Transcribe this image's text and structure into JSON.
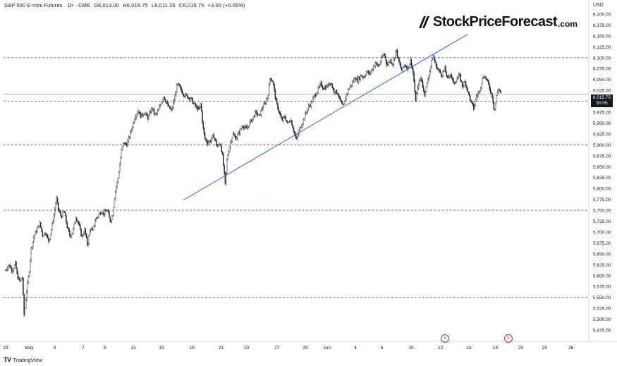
{
  "header": {
    "symbol": "S&P 500 E-mini Futures · 1h · CME",
    "open": "O6,013.00",
    "high": "H6,018.75",
    "low": "L6,011.25",
    "close": "C6,015.75",
    "change": "+3.00 (+0.05%)"
  },
  "brand": {
    "name": "StockPriceForecast",
    "tld": ".com"
  },
  "footer": {
    "logo": "TV",
    "label": "TradingView"
  },
  "price_tag": {
    "price": "6,015.75",
    "timer": "30:05"
  },
  "colors": {
    "candle": "#131722",
    "trendline": "#2962ff",
    "level_line": "#2962ff",
    "event": "#9c27b0"
  },
  "chart_data": {
    "type": "candlestick",
    "unit": "USD",
    "ylim": [
      5475,
      6212
    ],
    "y_ticks": [
      "6,200.00",
      "6,175.00",
      "6,150.00",
      "6,125.00",
      "6,100.00",
      "6,075.00",
      "6,050.00",
      "6,025.00",
      "6,000.00",
      "5,975.00",
      "5,950.00",
      "5,925.00",
      "5,900.00",
      "5,875.00",
      "5,850.00",
      "5,825.00",
      "5,800.00",
      "5,775.00",
      "5,750.00",
      "5,725.00",
      "5,700.00",
      "5,675.00",
      "5,650.00",
      "5,625.00",
      "5,600.00",
      "5,575.00",
      "5,550.00",
      "5,525.00",
      "5,500.00",
      "5,475.00"
    ],
    "x_ticks": [
      "29",
      "May",
      "4",
      "7",
      "9",
      "13",
      "15",
      "18",
      "21",
      "23",
      "27",
      "29",
      "Jun",
      "4",
      "6",
      "10",
      "12",
      "15",
      "18",
      "20",
      "24",
      "26"
    ],
    "last_price": 6015.75,
    "horizontal_levels": [
      6100,
      6000,
      5900,
      5750,
      5550
    ],
    "trendline": {
      "from": {
        "day": 18.2,
        "price": 5773
      },
      "to": {
        "day": 47.3,
        "price": 6153
      }
    },
    "events": [
      {
        "day": 46.5,
        "symbol": "»"
      },
      {
        "day": 53.2,
        "symbol": "⚡"
      }
    ],
    "price_path": [
      {
        "day": 0.0,
        "price": 5612
      },
      {
        "day": 0.3,
        "price": 5625
      },
      {
        "day": 0.7,
        "price": 5612
      },
      {
        "day": 1.0,
        "price": 5628
      },
      {
        "day": 1.2,
        "price": 5598
      },
      {
        "day": 1.5,
        "price": 5585
      },
      {
        "day": 1.7,
        "price": 5600
      },
      {
        "day": 1.9,
        "price": 5505
      },
      {
        "day": 2.1,
        "price": 5555
      },
      {
        "day": 2.4,
        "price": 5605
      },
      {
        "day": 2.6,
        "price": 5660
      },
      {
        "day": 2.9,
        "price": 5690
      },
      {
        "day": 3.2,
        "price": 5705
      },
      {
        "day": 3.5,
        "price": 5720
      },
      {
        "day": 3.8,
        "price": 5692
      },
      {
        "day": 4.1,
        "price": 5700
      },
      {
        "day": 4.4,
        "price": 5678
      },
      {
        "day": 4.7,
        "price": 5708
      },
      {
        "day": 5.0,
        "price": 5745
      },
      {
        "day": 5.2,
        "price": 5778
      },
      {
        "day": 5.4,
        "price": 5752
      },
      {
        "day": 5.7,
        "price": 5735
      },
      {
        "day": 6.0,
        "price": 5748
      },
      {
        "day": 6.3,
        "price": 5712
      },
      {
        "day": 6.6,
        "price": 5690
      },
      {
        "day": 6.9,
        "price": 5702
      },
      {
        "day": 7.2,
        "price": 5735
      },
      {
        "day": 7.5,
        "price": 5718
      },
      {
        "day": 7.8,
        "price": 5688
      },
      {
        "day": 8.1,
        "price": 5705
      },
      {
        "day": 8.4,
        "price": 5668
      },
      {
        "day": 8.7,
        "price": 5712
      },
      {
        "day": 8.9,
        "price": 5700
      },
      {
        "day": 9.2,
        "price": 5728
      },
      {
        "day": 9.5,
        "price": 5738
      },
      {
        "day": 9.8,
        "price": 5748
      },
      {
        "day": 10.1,
        "price": 5742
      },
      {
        "day": 10.4,
        "price": 5752
      },
      {
        "day": 10.7,
        "price": 5725
      },
      {
        "day": 11.0,
        "price": 5742
      },
      {
        "day": 11.2,
        "price": 5790
      },
      {
        "day": 11.5,
        "price": 5820
      },
      {
        "day": 11.7,
        "price": 5855
      },
      {
        "day": 11.9,
        "price": 5890
      },
      {
        "day": 12.1,
        "price": 5905
      },
      {
        "day": 12.4,
        "price": 5900
      },
      {
        "day": 12.7,
        "price": 5920
      },
      {
        "day": 13.0,
        "price": 5945
      },
      {
        "day": 13.3,
        "price": 5968
      },
      {
        "day": 13.6,
        "price": 5978
      },
      {
        "day": 13.9,
        "price": 5965
      },
      {
        "day": 14.2,
        "price": 5975
      },
      {
        "day": 14.6,
        "price": 5962
      },
      {
        "day": 15.0,
        "price": 5985
      },
      {
        "day": 15.3,
        "price": 5968
      },
      {
        "day": 15.6,
        "price": 5975
      },
      {
        "day": 15.9,
        "price": 5995
      },
      {
        "day": 16.2,
        "price": 6012
      },
      {
        "day": 16.6,
        "price": 5990
      },
      {
        "day": 17.0,
        "price": 5978
      },
      {
        "day": 17.3,
        "price": 6005
      },
      {
        "day": 17.6,
        "price": 6040
      },
      {
        "day": 18.0,
        "price": 6025
      },
      {
        "day": 18.3,
        "price": 6015
      },
      {
        "day": 18.7,
        "price": 6010
      },
      {
        "day": 19.0,
        "price": 6005
      },
      {
        "day": 19.4,
        "price": 5990
      },
      {
        "day": 19.8,
        "price": 5980
      },
      {
        "day": 20.0,
        "price": 5995
      },
      {
        "day": 20.2,
        "price": 5945
      },
      {
        "day": 20.4,
        "price": 5915
      },
      {
        "day": 20.7,
        "price": 5905
      },
      {
        "day": 21.0,
        "price": 5910
      },
      {
        "day": 21.3,
        "price": 5922
      },
      {
        "day": 21.7,
        "price": 5895
      },
      {
        "day": 22.0,
        "price": 5905
      },
      {
        "day": 22.2,
        "price": 5880
      },
      {
        "day": 22.4,
        "price": 5835
      },
      {
        "day": 22.5,
        "price": 5808
      },
      {
        "day": 22.7,
        "price": 5870
      },
      {
        "day": 23.0,
        "price": 5902
      },
      {
        "day": 23.3,
        "price": 5925
      },
      {
        "day": 23.6,
        "price": 5915
      },
      {
        "day": 24.0,
        "price": 5932
      },
      {
        "day": 24.3,
        "price": 5945
      },
      {
        "day": 24.7,
        "price": 5935
      },
      {
        "day": 25.0,
        "price": 5950
      },
      {
        "day": 25.3,
        "price": 5960
      },
      {
        "day": 25.6,
        "price": 5975
      },
      {
        "day": 26.0,
        "price": 5965
      },
      {
        "day": 26.3,
        "price": 5985
      },
      {
        "day": 26.6,
        "price": 5995
      },
      {
        "day": 26.9,
        "price": 6015
      },
      {
        "day": 27.1,
        "price": 6055
      },
      {
        "day": 27.4,
        "price": 6045
      },
      {
        "day": 27.7,
        "price": 6000
      },
      {
        "day": 28.0,
        "price": 5978
      },
      {
        "day": 28.3,
        "price": 5955
      },
      {
        "day": 28.6,
        "price": 5965
      },
      {
        "day": 28.9,
        "price": 5948
      },
      {
        "day": 29.2,
        "price": 5960
      },
      {
        "day": 29.5,
        "price": 5935
      },
      {
        "day": 29.8,
        "price": 5910
      },
      {
        "day": 30.1,
        "price": 5935
      },
      {
        "day": 30.4,
        "price": 5950
      },
      {
        "day": 30.7,
        "price": 5970
      },
      {
        "day": 31.0,
        "price": 5985
      },
      {
        "day": 31.3,
        "price": 5995
      },
      {
        "day": 31.6,
        "price": 6010
      },
      {
        "day": 32.0,
        "price": 6025
      },
      {
        "day": 32.3,
        "price": 6040
      },
      {
        "day": 32.6,
        "price": 6030
      },
      {
        "day": 33.0,
        "price": 6035
      },
      {
        "day": 33.3,
        "price": 6045
      },
      {
        "day": 33.6,
        "price": 6025
      },
      {
        "day": 34.0,
        "price": 6020
      },
      {
        "day": 34.3,
        "price": 6000
      },
      {
        "day": 34.6,
        "price": 5985
      },
      {
        "day": 34.9,
        "price": 6015
      },
      {
        "day": 35.2,
        "price": 6030
      },
      {
        "day": 35.5,
        "price": 6040
      },
      {
        "day": 35.8,
        "price": 6055
      },
      {
        "day": 36.1,
        "price": 6048
      },
      {
        "day": 36.4,
        "price": 6060
      },
      {
        "day": 36.7,
        "price": 6055
      },
      {
        "day": 37.0,
        "price": 6068
      },
      {
        "day": 37.3,
        "price": 6062
      },
      {
        "day": 37.6,
        "price": 6075
      },
      {
        "day": 37.9,
        "price": 6088
      },
      {
        "day": 38.2,
        "price": 6080
      },
      {
        "day": 38.5,
        "price": 6095
      },
      {
        "day": 38.8,
        "price": 6110
      },
      {
        "day": 39.1,
        "price": 6082
      },
      {
        "day": 39.4,
        "price": 6095
      },
      {
        "day": 39.7,
        "price": 6085
      },
      {
        "day": 40.0,
        "price": 6120
      },
      {
        "day": 40.3,
        "price": 6090
      },
      {
        "day": 40.6,
        "price": 6070
      },
      {
        "day": 40.9,
        "price": 6085
      },
      {
        "day": 41.2,
        "price": 6075
      },
      {
        "day": 41.5,
        "price": 6095
      },
      {
        "day": 41.8,
        "price": 6060
      },
      {
        "day": 42.0,
        "price": 6000
      },
      {
        "day": 42.3,
        "price": 6040
      },
      {
        "day": 42.6,
        "price": 6055
      },
      {
        "day": 42.9,
        "price": 6015
      },
      {
        "day": 43.2,
        "price": 6040
      },
      {
        "day": 43.5,
        "price": 6075
      },
      {
        "day": 43.8,
        "price": 6105
      },
      {
        "day": 44.1,
        "price": 6082
      },
      {
        "day": 44.4,
        "price": 6070
      },
      {
        "day": 44.7,
        "price": 6060
      },
      {
        "day": 45.0,
        "price": 6075
      },
      {
        "day": 45.3,
        "price": 6050
      },
      {
        "day": 45.6,
        "price": 6065
      },
      {
        "day": 45.9,
        "price": 6040
      },
      {
        "day": 46.2,
        "price": 6050
      },
      {
        "day": 46.5,
        "price": 6060
      },
      {
        "day": 46.8,
        "price": 6035
      },
      {
        "day": 47.1,
        "price": 6045
      },
      {
        "day": 47.4,
        "price": 6020
      },
      {
        "day": 47.7,
        "price": 5998
      },
      {
        "day": 48.0,
        "price": 5982
      },
      {
        "day": 48.2,
        "price": 6010
      },
      {
        "day": 48.5,
        "price": 6020
      },
      {
        "day": 48.8,
        "price": 6045
      },
      {
        "day": 49.0,
        "price": 6060
      },
      {
        "day": 49.3,
        "price": 6050
      },
      {
        "day": 49.6,
        "price": 6030
      },
      {
        "day": 49.9,
        "price": 6010
      },
      {
        "day": 50.1,
        "price": 5975
      },
      {
        "day": 50.3,
        "price": 6010
      },
      {
        "day": 50.5,
        "price": 6030
      },
      {
        "day": 50.8,
        "price": 6015.75
      }
    ]
  }
}
